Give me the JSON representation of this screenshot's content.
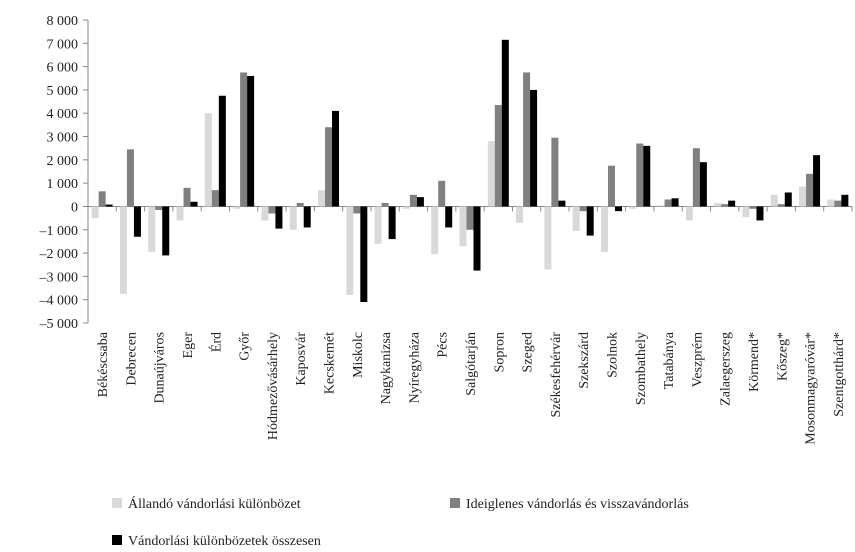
{
  "chart_data": {
    "type": "bar",
    "categories": [
      "Békéscsaba",
      "Debrecen",
      "Dunaújváros",
      "Eger",
      "Érd",
      "Győr",
      "Hódmezővásárhely",
      "Kaposvár",
      "Kecskemét",
      "Miskolc",
      "Nagykanizsa",
      "Nyíregyháza",
      "Pécs",
      "Salgótarján",
      "Sopron",
      "Szeged",
      "Székesfehérvár",
      "Szekszárd",
      "Szolnok",
      "Szombathely",
      "Tatabánya",
      "Veszprém",
      "Zalaegerszeg",
      "Körmend*",
      "Kőszeg*",
      "Mosonmagyaróvár*",
      "Szentgotthárd*"
    ],
    "series": [
      {
        "name": "Állandó vándorlási különbözet",
        "color": "#d9d9d9",
        "values": [
          -500,
          -3750,
          -1950,
          -600,
          4000,
          -100,
          -600,
          -1000,
          700,
          -3800,
          -1600,
          -100,
          -2050,
          -1700,
          2800,
          -700,
          -2700,
          -1050,
          -1950,
          -100,
          50,
          -600,
          150,
          -450,
          500,
          850,
          300
        ]
      },
      {
        "name": "Ideiglenes vándorlás és visszavándorlás",
        "color": "#808080",
        "values": [
          650,
          2450,
          -150,
          800,
          700,
          5750,
          -300,
          150,
          3400,
          -300,
          150,
          500,
          1100,
          -1000,
          4350,
          5750,
          2950,
          -200,
          1750,
          2700,
          300,
          2500,
          100,
          -100,
          100,
          1400,
          250
        ]
      },
      {
        "name": "Vándorlási különbözetek összesen",
        "color": "#000000",
        "values": [
          80,
          -1300,
          -2100,
          200,
          4750,
          5600,
          -950,
          -900,
          4100,
          -4100,
          -1400,
          400,
          -900,
          -2750,
          7150,
          5000,
          250,
          -1250,
          -200,
          2600,
          350,
          1900,
          250,
          -600,
          600,
          2200,
          500
        ]
      }
    ],
    "ylim": [
      -5000,
      8000
    ],
    "yticks": [
      {
        "value": -5000,
        "label": "–5 000"
      },
      {
        "value": -4000,
        "label": "–4 000"
      },
      {
        "value": -3000,
        "label": "–3 000"
      },
      {
        "value": -2000,
        "label": "–2 000"
      },
      {
        "value": -1000,
        "label": "–1 000"
      },
      0,
      {
        "value": 1000,
        "label": "1 000"
      },
      {
        "value": 2000,
        "label": "2 000"
      },
      {
        "value": 3000,
        "label": "3 000"
      },
      {
        "value": 4000,
        "label": "4 000"
      },
      {
        "value": 5000,
        "label": "5 000"
      },
      {
        "value": 6000,
        "label": "6 000"
      },
      {
        "value": 7000,
        "label": "7 000"
      },
      {
        "value": 8000,
        "label": "8 000"
      }
    ],
    "grid": false
  }
}
